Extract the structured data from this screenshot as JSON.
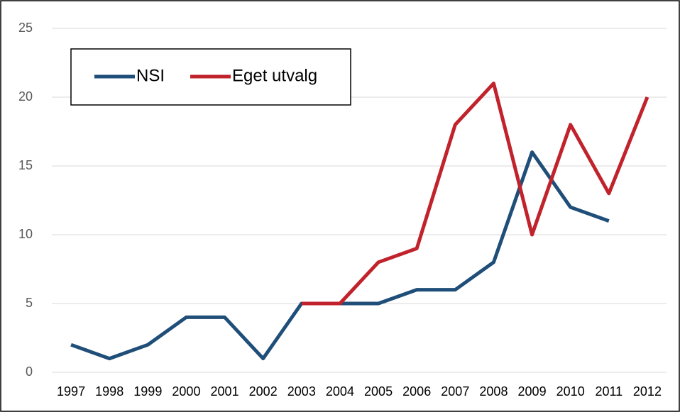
{
  "chart_data": {
    "type": "line",
    "categories": [
      "1997",
      "1998",
      "1999",
      "2000",
      "2001",
      "2002",
      "2003",
      "2004",
      "2005",
      "2006",
      "2007",
      "2008",
      "2009",
      "2010",
      "2011",
      "2012"
    ],
    "series": [
      {
        "name": "NSI",
        "color": "#1f4e79",
        "values": [
          2,
          1,
          2,
          4,
          4,
          1,
          5,
          5,
          5,
          6,
          6,
          8,
          16,
          12,
          11,
          null
        ]
      },
      {
        "name": "Eget utvalg",
        "color": "#c0232c",
        "values": [
          null,
          null,
          null,
          null,
          null,
          null,
          5,
          5,
          8,
          9,
          18,
          21,
          10,
          18,
          13,
          20
        ]
      }
    ],
    "ylim": [
      0,
      25
    ],
    "yticks": [
      0,
      5,
      10,
      15,
      20,
      25
    ],
    "grid": true,
    "legend": "top-left"
  }
}
